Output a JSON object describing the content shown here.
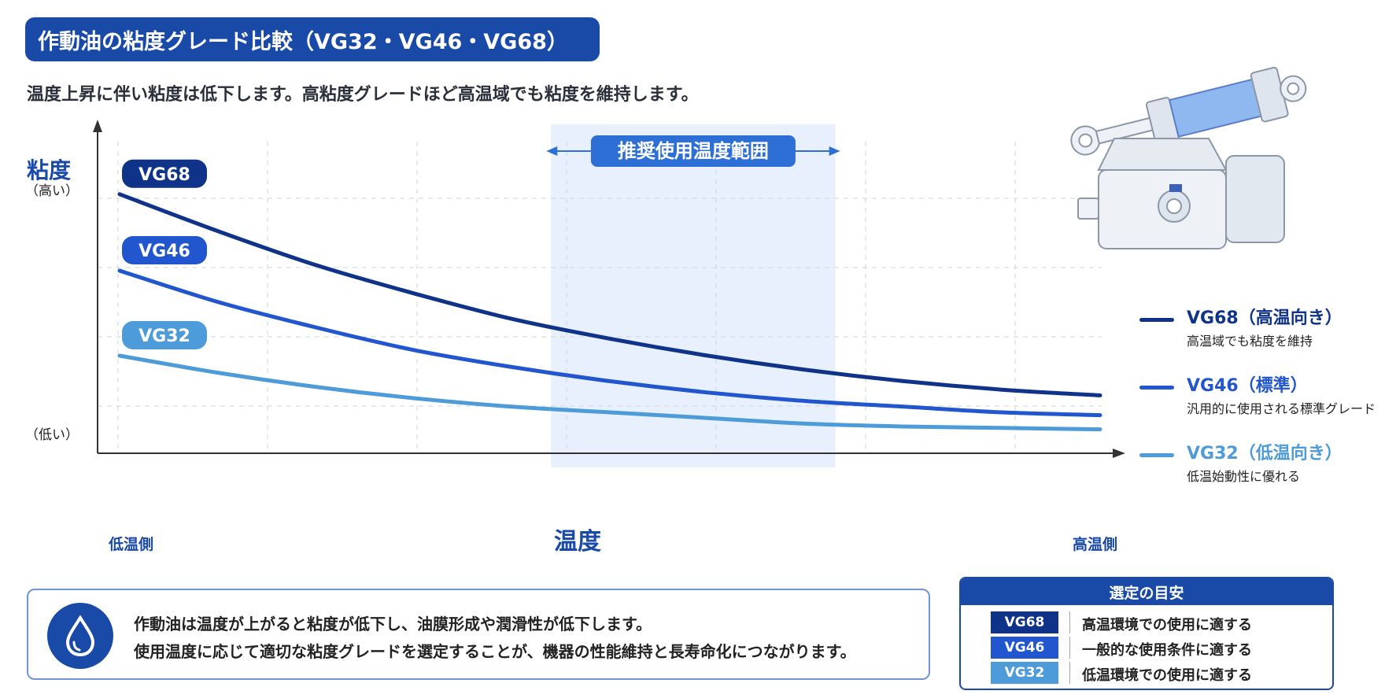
{
  "header": {
    "title": "作動油の粘度グレード比較（VG32・VG46・VG68）",
    "subtitle": "温度上昇に伴い粘度は低下します。高粘度グレードほど高温域でも粘度を維持します。"
  },
  "chart_data": {
    "type": "line",
    "title": "",
    "ylabel": "粘度",
    "y_high_label": "（高い）",
    "y_low_label": "（低い）",
    "xlabel": "温度",
    "x_low_label": "低温側",
    "x_high_label": "高温側",
    "recommended_range_label": "推奨使用温度範囲",
    "recommended_range": [
      0.44,
      0.73
    ],
    "xlim": [
      0,
      1
    ],
    "ylim": [
      0,
      1
    ],
    "grid": true,
    "legend_position": "right",
    "x": [
      0,
      0.1,
      0.2,
      0.3,
      0.4,
      0.5,
      0.6,
      0.7,
      0.8,
      0.9,
      1.0
    ],
    "series": [
      {
        "name": "VG68",
        "color": "#10338a",
        "values": [
          0.87,
          0.74,
          0.62,
          0.52,
          0.43,
          0.36,
          0.3,
          0.25,
          0.21,
          0.18,
          0.16
        ]
      },
      {
        "name": "VG46",
        "color": "#2256cf",
        "values": [
          0.6,
          0.49,
          0.4,
          0.32,
          0.26,
          0.21,
          0.17,
          0.14,
          0.12,
          0.1,
          0.09
        ]
      },
      {
        "name": "VG32",
        "color": "#4d9bd8",
        "values": [
          0.3,
          0.24,
          0.19,
          0.15,
          0.12,
          0.1,
          0.08,
          0.06,
          0.05,
          0.045,
          0.04
        ]
      }
    ]
  },
  "legend": [
    {
      "name": "VG68（高温向き）",
      "desc": "高温域でも粘度を維持",
      "color": "#10338a"
    },
    {
      "name": "VG46（標準）",
      "desc": "汎用的に使用される標準グレード",
      "color": "#2256cf"
    },
    {
      "name": "VG32（低温向き）",
      "desc": "低温始動性に優れる",
      "color": "#4d9bd8"
    }
  ],
  "note": {
    "icon": "oil-drop-icon",
    "line1": "作動油は温度が上がると粘度が低下し、油膜形成や潤滑性が低下します。",
    "line2": "使用温度に応じて適切な粘度グレードを選定することが、機器の性能維持と長寿命化につながります。"
  },
  "guide": {
    "title": "選定の目安",
    "rows": [
      {
        "tag": "VG68",
        "text": "高温環境での使用に適する",
        "color": "#10338a"
      },
      {
        "tag": "VG46",
        "text": "一般的な使用条件に適する",
        "color": "#2256cf"
      },
      {
        "tag": "VG32",
        "text": "低温環境での使用に適する",
        "color": "#4d9bd8"
      }
    ]
  },
  "illustrations": [
    "hydraulic-cylinder-icon",
    "hydraulic-pump-icon"
  ]
}
